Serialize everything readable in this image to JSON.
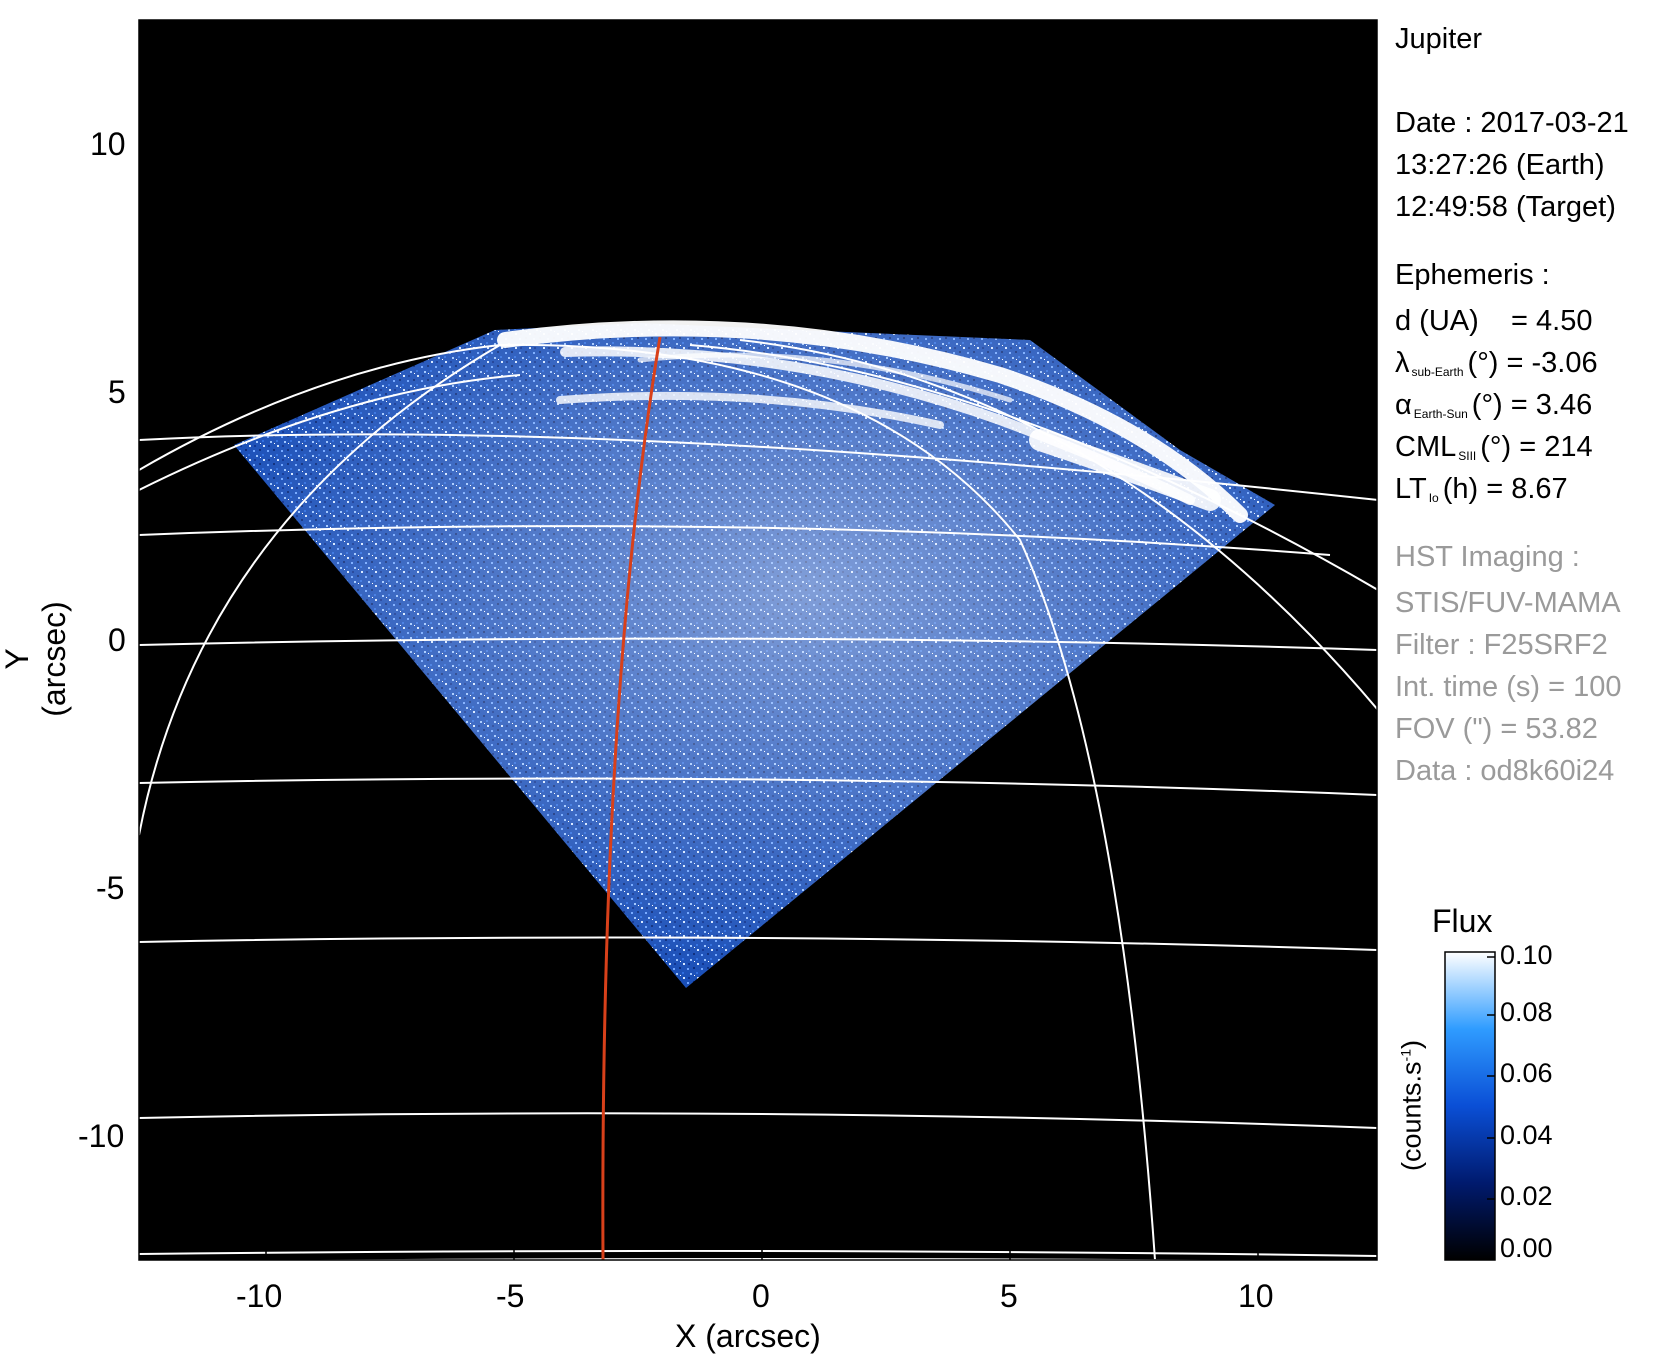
{
  "image": {
    "target": "Jupiter",
    "date_line": "Date : 2017-03-21",
    "time_earth": "13:27:26 (Earth)",
    "time_target": "12:49:58 (Target)",
    "ephemeris": {
      "heading": "Ephemeris :",
      "d_label": "d (UA)",
      "d_value": "= 4.50",
      "lat_symbol": "λ",
      "lat_sub": "sub-Earth",
      "lat_rest": "(°) = -3.06",
      "alpha_symbol": "α",
      "alpha_sub": "Earth-Sun",
      "alpha_rest": "(°) = 3.46",
      "cml_symbol": "CML",
      "cml_sub": "SIII",
      "cml_rest": "(°) = 214",
      "lt_symbol": "LT",
      "lt_sub": "Io",
      "lt_rest": "(h) = 8.67"
    },
    "hst": {
      "heading": "HST Imaging :",
      "instrument": "STIS/FUV-MAMA",
      "filter": "Filter : F25SRF2",
      "int_time": "Int. time (s) = 100",
      "fov": "FOV (\") = 53.82",
      "data": "Data : od8k60i24"
    },
    "axes": {
      "xlabel": "X (arcsec)",
      "ylabel": "Y (arcsec)",
      "xticks": [
        "-10",
        "-5",
        "0",
        "5",
        "10"
      ],
      "yticks": [
        "10",
        "5",
        "0",
        "-5",
        "-10"
      ],
      "xlim": [
        -12.5,
        12.5
      ],
      "ylim": [
        -12.5,
        12.5
      ]
    },
    "colorbar": {
      "title": "Flux",
      "unit": "(counts.s",
      "unit_sup": "-1",
      "unit_end": ")",
      "ticks": [
        "0.10",
        "0.08",
        "0.06",
        "0.04",
        "0.02",
        "0.00"
      ]
    },
    "colors": {
      "sky": "#000000",
      "emission": "#1f5fd0",
      "aurora": "#ffffff",
      "grid": "#ffffff",
      "cml_meridian": "#d8401a"
    }
  }
}
